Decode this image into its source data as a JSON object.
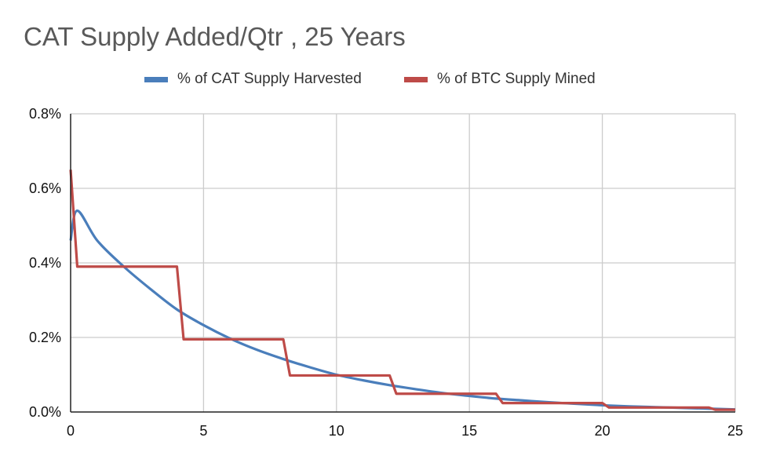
{
  "chart_data": {
    "type": "line",
    "title": "CAT Supply Added/Qtr , 25 Years",
    "xlabel": "",
    "ylabel": "",
    "xlim": [
      0,
      25
    ],
    "ylim": [
      0,
      0.8
    ],
    "x_ticks": [
      0,
      5,
      10,
      15,
      20,
      25
    ],
    "x_tick_labels": [
      "0",
      "5",
      "10",
      "15",
      "20",
      "25"
    ],
    "y_ticks": [
      0,
      0.2,
      0.4,
      0.6,
      0.8
    ],
    "y_tick_labels": [
      "0.0%",
      "0.2%",
      "0.4%",
      "0.6%",
      "0.8%"
    ],
    "grid": true,
    "legend_position": "top-center",
    "series": [
      {
        "name": "% of CAT Supply Harvested",
        "color": "#4a7ebb",
        "x": [
          0,
          0.25,
          1,
          2,
          3,
          4,
          5,
          6,
          7,
          8,
          9,
          10,
          11,
          12,
          13,
          14,
          15,
          16,
          17,
          18,
          19,
          20,
          21,
          22,
          23,
          24,
          25
        ],
        "y": [
          0.46,
          0.54,
          0.46,
          0.39,
          0.33,
          0.275,
          0.233,
          0.197,
          0.167,
          0.142,
          0.12,
          0.1,
          0.085,
          0.072,
          0.061,
          0.051,
          0.043,
          0.036,
          0.031,
          0.026,
          0.022,
          0.018,
          0.015,
          0.013,
          0.011,
          0.009,
          0.007
        ]
      },
      {
        "name": "% of BTC Supply Mined",
        "color": "#be4b48",
        "x": [
          0,
          0.25,
          4,
          4.25,
          8,
          8.25,
          12,
          12.25,
          16,
          16.25,
          20,
          20.25,
          24,
          24.25,
          25
        ],
        "y": [
          0.65,
          0.39,
          0.39,
          0.195,
          0.195,
          0.098,
          0.098,
          0.049,
          0.049,
          0.024,
          0.024,
          0.012,
          0.012,
          0.006,
          0.006
        ]
      }
    ]
  }
}
